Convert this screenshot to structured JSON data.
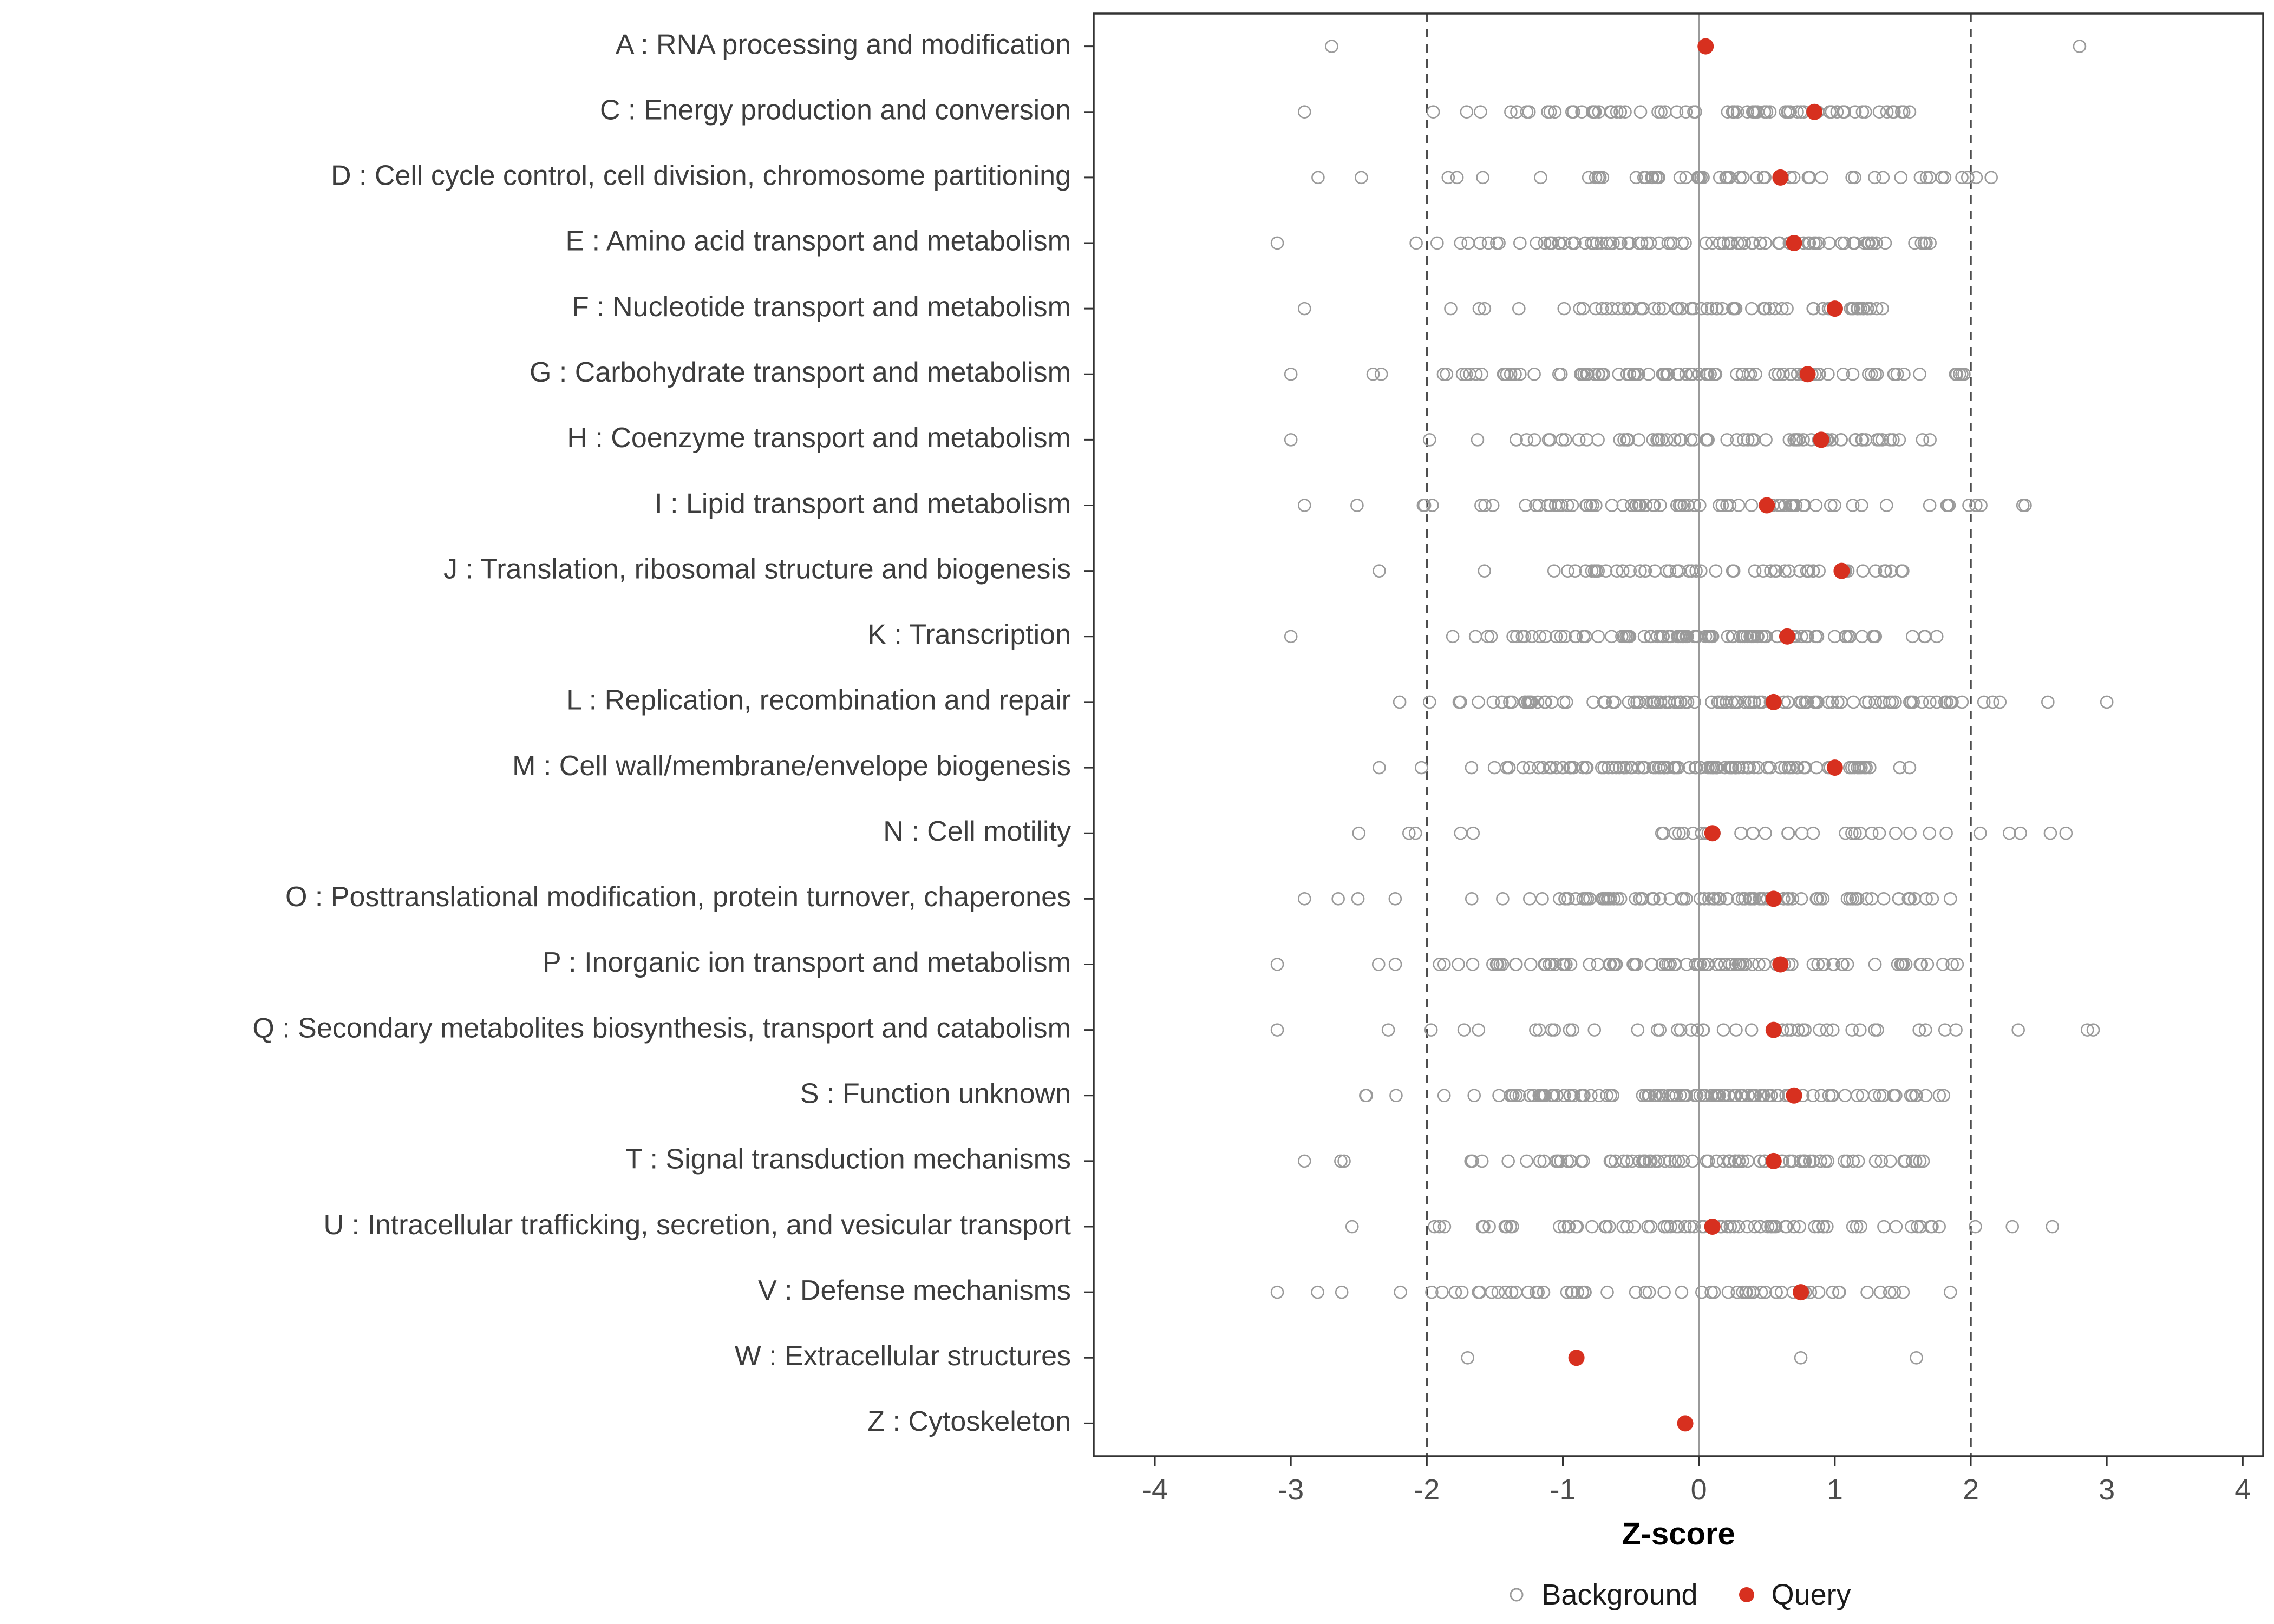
{
  "chart_data": {
    "type": "scatter",
    "subtype": "strip-plot",
    "title": "",
    "xlabel": "Z-score",
    "ylabel": "",
    "xlim": [
      -4.45,
      4.15
    ],
    "x_ticks": [
      -4,
      -3,
      -2,
      -1,
      0,
      1,
      2,
      3,
      4
    ],
    "reference_lines": {
      "solid": [
        0
      ],
      "dashed": [
        -2,
        2
      ]
    },
    "grid": false,
    "legend_position": "bottom",
    "legend": [
      {
        "label": "Background",
        "marker": "open-circle"
      },
      {
        "label": "Query",
        "marker": "filled-circle"
      }
    ],
    "colors": {
      "background_stroke": "#9a9a9a",
      "query_fill": "#d7301f",
      "axis_text": "#4d4d4d",
      "category_text": "#3d3d3d",
      "panel_border": "#333333",
      "ref_solid": "#9a9a9a",
      "ref_dashed": "#4d4d4d",
      "tick_mark": "#333333",
      "xlabel_text": "#000000"
    },
    "categories": [
      {
        "label": "A : RNA processing and modification",
        "query": 0.05,
        "background_points": [
          -2.7,
          2.8
        ]
      },
      {
        "label": "C : Energy production and conversion",
        "query": 0.85,
        "background": {
          "n": 70,
          "min": -2.9,
          "max": 1.55,
          "mean": 0.15,
          "sd": 1.05,
          "seed": 11
        }
      },
      {
        "label": "D : Cell cycle control, cell division, chromosome partitioning",
        "query": 0.6,
        "background": {
          "n": 55,
          "min": -2.8,
          "max": 2.15,
          "mean": 0.2,
          "sd": 1.2,
          "seed": 12
        }
      },
      {
        "label": "E : Amino acid transport and metabolism",
        "query": 0.7,
        "background": {
          "n": 88,
          "min": -3.1,
          "max": 1.7,
          "mean": 0.1,
          "sd": 1.1,
          "seed": 13
        }
      },
      {
        "label": "F : Nucleotide transport and metabolism",
        "query": 1.0,
        "background": {
          "n": 65,
          "min": -2.9,
          "max": 1.35,
          "mean": 0.1,
          "sd": 1.0,
          "seed": 14
        }
      },
      {
        "label": "G : Carbohydrate transport and metabolism",
        "query": 0.8,
        "background": {
          "n": 95,
          "min": -3.0,
          "max": 1.95,
          "mean": 0.1,
          "sd": 1.1,
          "seed": 15
        }
      },
      {
        "label": "H : Coenzyme transport and metabolism",
        "query": 0.9,
        "background": {
          "n": 70,
          "min": -3.0,
          "max": 1.7,
          "mean": 0.15,
          "sd": 1.05,
          "seed": 16
        }
      },
      {
        "label": "I : Lipid transport and metabolism",
        "query": 0.5,
        "background": {
          "n": 78,
          "min": -2.9,
          "max": 2.4,
          "mean": 0.15,
          "sd": 1.1,
          "seed": 17
        }
      },
      {
        "label": "J : Translation, ribosomal structure and biogenesis",
        "query": 1.05,
        "background": {
          "n": 55,
          "min": -2.35,
          "max": 1.5,
          "mean": 0.3,
          "sd": 0.9,
          "seed": 18
        }
      },
      {
        "label": "K : Transcription",
        "query": 0.65,
        "background": {
          "n": 100,
          "min": -3.0,
          "max": 1.75,
          "mean": 0.1,
          "sd": 1.05,
          "seed": 19
        }
      },
      {
        "label": "L : Replication, recombination and repair",
        "query": 0.55,
        "background": {
          "n": 110,
          "min": -2.2,
          "max": 3.0,
          "mean": 0.2,
          "sd": 1.1,
          "seed": 20
        }
      },
      {
        "label": "M : Cell wall/membrane/envelope biogenesis",
        "query": 1.0,
        "background": {
          "n": 100,
          "min": -2.35,
          "max": 1.55,
          "mean": 0.2,
          "sd": 0.95,
          "seed": 21
        }
      },
      {
        "label": "N : Cell motility",
        "query": 0.1,
        "background": {
          "n": 38,
          "min": -2.5,
          "max": 2.7,
          "mean": 0.2,
          "sd": 1.3,
          "seed": 22
        }
      },
      {
        "label": "O : Posttranslational modification, protein turnover, chaperones",
        "query": 0.55,
        "background": {
          "n": 85,
          "min": -2.9,
          "max": 1.85,
          "mean": 0.15,
          "sd": 1.05,
          "seed": 23
        }
      },
      {
        "label": "P : Inorganic ion transport and metabolism",
        "query": 0.6,
        "background": {
          "n": 95,
          "min": -3.1,
          "max": 1.9,
          "mean": 0.1,
          "sd": 1.1,
          "seed": 24
        }
      },
      {
        "label": "Q : Secondary metabolites biosynthesis, transport and catabolism",
        "query": 0.55,
        "background": {
          "n": 45,
          "min": -3.1,
          "max": 2.9,
          "mean": 0.2,
          "sd": 1.4,
          "seed": 25
        }
      },
      {
        "label": "S : Function unknown",
        "query": 0.7,
        "background": {
          "n": 115,
          "min": -2.45,
          "max": 1.8,
          "mean": 0.1,
          "sd": 1.0,
          "seed": 26
        }
      },
      {
        "label": "T : Signal transduction mechanisms",
        "query": 0.55,
        "background": {
          "n": 85,
          "min": -2.9,
          "max": 1.65,
          "mean": 0.1,
          "sd": 1.05,
          "seed": 27
        }
      },
      {
        "label": "U : Intracellular trafficking, secretion, and vesicular transport",
        "query": 0.1,
        "background": {
          "n": 78,
          "min": -2.55,
          "max": 2.6,
          "mean": 0.25,
          "sd": 1.15,
          "seed": 28
        }
      },
      {
        "label": "V : Defense mechanisms",
        "query": 0.75,
        "background": {
          "n": 65,
          "min": -3.1,
          "max": 1.85,
          "mean": 0.1,
          "sd": 1.1,
          "seed": 29
        }
      },
      {
        "label": "W : Extracellular structures",
        "query": -0.9,
        "background_points": [
          -1.7,
          0.75,
          1.6
        ]
      },
      {
        "label": "Z : Cytoskeleton",
        "query": -0.1,
        "background_points": []
      }
    ]
  },
  "legend": {
    "background_label": "Background",
    "query_label": "Query"
  },
  "axis": {
    "xlabel": "Z-score"
  }
}
